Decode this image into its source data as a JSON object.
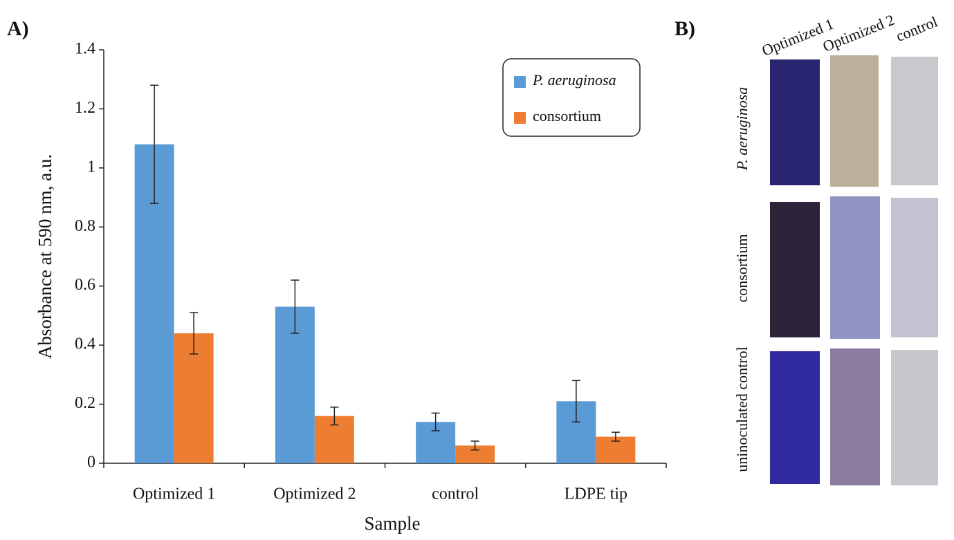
{
  "panel_labels": [
    "A)",
    "B)"
  ],
  "chart_data": {
    "type": "bar",
    "ylabel": "Absorbance at 590 nm, a.u.",
    "xlabel": "Sample",
    "categories": [
      "Optimized 1",
      "Optimized 2",
      "control",
      "LDPE tip"
    ],
    "series": [
      {
        "name": "P. aeruginosa",
        "color": "#5b9bd5",
        "values": [
          1.08,
          0.53,
          0.14,
          0.21
        ],
        "errors": [
          0.2,
          0.09,
          0.03,
          0.07
        ]
      },
      {
        "name": "consortium",
        "color": "#ed7d31",
        "values": [
          0.44,
          0.16,
          0.06,
          0.09
        ],
        "errors": [
          0.07,
          0.03,
          0.015,
          0.015
        ]
      }
    ],
    "ylim": [
      0,
      1.4
    ],
    "yticks": [
      0,
      0.2,
      0.4,
      0.6,
      0.8,
      1,
      1.2,
      1.4
    ],
    "grid": false
  },
  "photo_panel": {
    "columns": [
      "Optimized 1",
      "Optimized 2",
      "control"
    ],
    "rows": [
      "P. aeruginosa",
      "consortium",
      "uninoculated control"
    ]
  }
}
